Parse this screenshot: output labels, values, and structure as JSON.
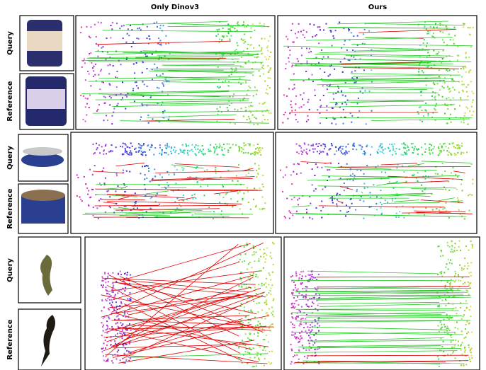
{
  "header": {
    "columns": [
      "Only Dinov3",
      "Ours"
    ]
  },
  "rows": [
    {
      "query": "Query",
      "reference": "Reference"
    },
    {
      "query": "Query",
      "reference": "Reference"
    },
    {
      "query": "Query",
      "reference": "Reference"
    }
  ]
}
